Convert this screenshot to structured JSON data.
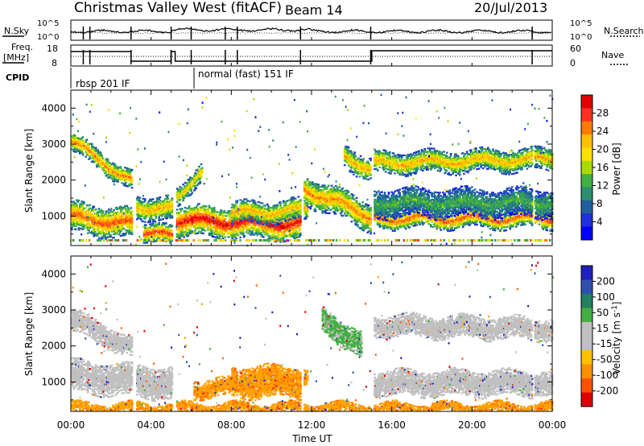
{
  "header": {
    "title": "Christmas Valley West (fitACF)",
    "beam": "Beam 14",
    "date": "20/Jul/2013"
  },
  "params": {
    "nsky_label": "N.Sky",
    "nsearch_label": "N.Search",
    "freq_label_1": "Freq.",
    "freq_label_2": "[MHz]",
    "nave_label": "Nave",
    "cpid_label": "CPID",
    "nsky_ticks": [
      "10^5",
      "10^0"
    ],
    "nsearch_ticks": [
      "10^5",
      "10^0"
    ],
    "freq_ticks": [
      "18",
      "8"
    ],
    "nave_ticks": [
      "60",
      "0"
    ],
    "cpid_segments": [
      {
        "label": "rbsp 201 IF",
        "start_hour": 0.0,
        "end_hour": 6.0
      },
      {
        "label": "normal (fast) 151 IF",
        "start_hour": 6.0,
        "end_hour": 24.0
      }
    ]
  },
  "axes": {
    "xlabel": "Time UT",
    "x_tick_labels": [
      "00:00",
      "04:00",
      "08:00",
      "12:00",
      "16:00",
      "20:00",
      "00:00"
    ],
    "ylabel_html": "Slant Range [km]",
    "y_tick_labels": [
      "1000",
      "2000",
      "3000",
      "4000"
    ]
  },
  "colorbars": {
    "power": {
      "title": "Power [dB]",
      "labels": [
        "28",
        "24",
        "20",
        "16",
        "12",
        "8",
        "4"
      ],
      "colors": [
        "#e00000",
        "#ff3020",
        "#ff7a00",
        "#ffc000",
        "#ffe000",
        "#a8dc00",
        "#40b040",
        "#2a9070",
        "#2060a0",
        "#2030e0",
        "#0000ff"
      ]
    },
    "velocity": {
      "title": "Velocity [m s",
      "title_sup": "-1",
      "title_end": "]",
      "labels": [
        "200",
        "100",
        "50",
        "15",
        "-15",
        "-50",
        "-100",
        "-200"
      ],
      "colors": [
        "#2020c0",
        "#3050b0",
        "#208060",
        "#40b040",
        "#c0c0c0",
        "#c0c0c0",
        "#ffc000",
        "#ff9000",
        "#ff5000",
        "#e00000"
      ]
    }
  },
  "chart_data": [
    {
      "type": "heatmap",
      "title": "",
      "quantity": "Power [dB]",
      "xlabel": "Time UT",
      "ylabel": "Slant Range [km]",
      "xlim_hours": [
        0,
        24
      ],
      "ylim_km": [
        180,
        4500
      ],
      "scale": [
        0,
        30
      ],
      "bands": [
        {
          "t0": 0.0,
          "t1": 3.0,
          "r0_start": 3100,
          "r0_end": 2000,
          "width": 260,
          "peak": 24
        },
        {
          "t0": 0.0,
          "t1": 3.2,
          "r0_start": 1000,
          "r0_end": 800,
          "width": 420,
          "peak": 26
        },
        {
          "t0": 3.0,
          "t1": 5.2,
          "r0_start": 1300,
          "r0_end": 1200,
          "width": 320,
          "peak": 22
        },
        {
          "t0": 3.6,
          "t1": 5.0,
          "r0_start": 600,
          "r0_end": 450,
          "width": 250,
          "peak": 28
        },
        {
          "t0": 5.0,
          "t1": 6.5,
          "r0_start": 1500,
          "r0_end": 2200,
          "width": 260,
          "peak": 20
        },
        {
          "t0": 5.2,
          "t1": 11.5,
          "r0_start": 900,
          "r0_end": 800,
          "width": 420,
          "peak": 30
        },
        {
          "t0": 8.0,
          "t1": 11.8,
          "r0_start": 1100,
          "r0_end": 1200,
          "width": 300,
          "peak": 22
        },
        {
          "t0": 11.5,
          "t1": 15.0,
          "r0_start": 1800,
          "r0_end": 1000,
          "width": 400,
          "peak": 24
        },
        {
          "t0": 13.6,
          "t1": 15.0,
          "r0_start": 2700,
          "r0_end": 2300,
          "width": 320,
          "peak": 22
        },
        {
          "t0": 15.0,
          "t1": 24.0,
          "r0_start": 2500,
          "r0_end": 2600,
          "width": 300,
          "peak": 22
        },
        {
          "t0": 15.0,
          "t1": 24.0,
          "r0_start": 950,
          "r0_end": 950,
          "width": 250,
          "peak": 26
        },
        {
          "t0": 15.0,
          "t1": 24.0,
          "r0_start": 1400,
          "r0_end": 1400,
          "width": 400,
          "peak": 12
        }
      ]
    },
    {
      "type": "heatmap",
      "title": "",
      "quantity": "Velocity [m s^-1]",
      "xlabel": "Time UT",
      "ylabel": "Slant Range [km]",
      "xlim_hours": [
        0,
        24
      ],
      "ylim_km": [
        180,
        4500
      ],
      "scale": [
        -200,
        200
      ],
      "bands": [
        {
          "t0": 0.0,
          "t1": 3.0,
          "r0_start": 2750,
          "r0_end": 2000,
          "width": 300,
          "vel": 0
        },
        {
          "t0": 0.0,
          "t1": 5.0,
          "r0_start": 1200,
          "r0_end": 1000,
          "width": 450,
          "vel": 5
        },
        {
          "t0": 6.0,
          "t1": 11.5,
          "r0_start": 850,
          "r0_end": 850,
          "width": 250,
          "vel": -60
        },
        {
          "t0": 8.0,
          "t1": 11.8,
          "r0_start": 1200,
          "r0_end": 1200,
          "width": 250,
          "vel": -60
        },
        {
          "t0": 12.5,
          "t1": 14.5,
          "r0_start": 2800,
          "r0_end": 2000,
          "width": 350,
          "vel": 40
        },
        {
          "t0": 15.0,
          "t1": 24.0,
          "r0_start": 2600,
          "r0_end": 2500,
          "width": 300,
          "vel": 0
        },
        {
          "t0": 15.0,
          "t1": 24.0,
          "r0_start": 1000,
          "r0_end": 1000,
          "width": 350,
          "vel": 0
        },
        {
          "t0": 0.0,
          "t1": 24.0,
          "r0_start": 300,
          "r0_end": 300,
          "width": 150,
          "vel": -60
        }
      ]
    }
  ]
}
